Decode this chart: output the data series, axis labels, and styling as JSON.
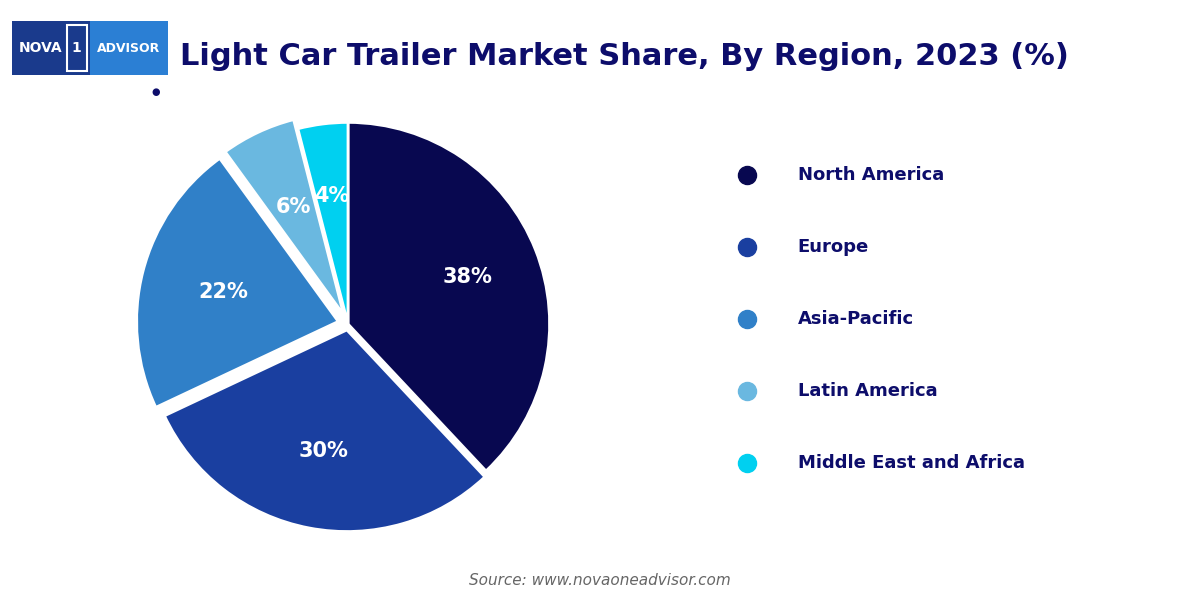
{
  "title": "Light Car Trailer Market Share, By Region, 2023 (%)",
  "title_color": "#0d0d6b",
  "title_fontsize": 22,
  "background_color": "#ffffff",
  "labels": [
    "North America",
    "Europe",
    "Asia-Pacific",
    "Latin America",
    "Middle East and Africa"
  ],
  "values": [
    38,
    30,
    22,
    6,
    4
  ],
  "colors": [
    "#080850",
    "#1a3fa0",
    "#3080c8",
    "#6ab8e0",
    "#00d0f0"
  ],
  "explode": [
    0,
    0.03,
    0.05,
    0.05,
    0.0
  ],
  "text_color": "#ffffff",
  "pct_fontsize": 15,
  "legend_label_color": "#0d0d6b",
  "legend_fontsize": 13,
  "source_text": "Source: www.novaoneadvisor.com",
  "source_fontsize": 11,
  "source_color": "#666666",
  "separator_color": "#0d0d6b",
  "logo_dark_color": "#1a3a8c",
  "logo_light_color": "#2b7fd4"
}
